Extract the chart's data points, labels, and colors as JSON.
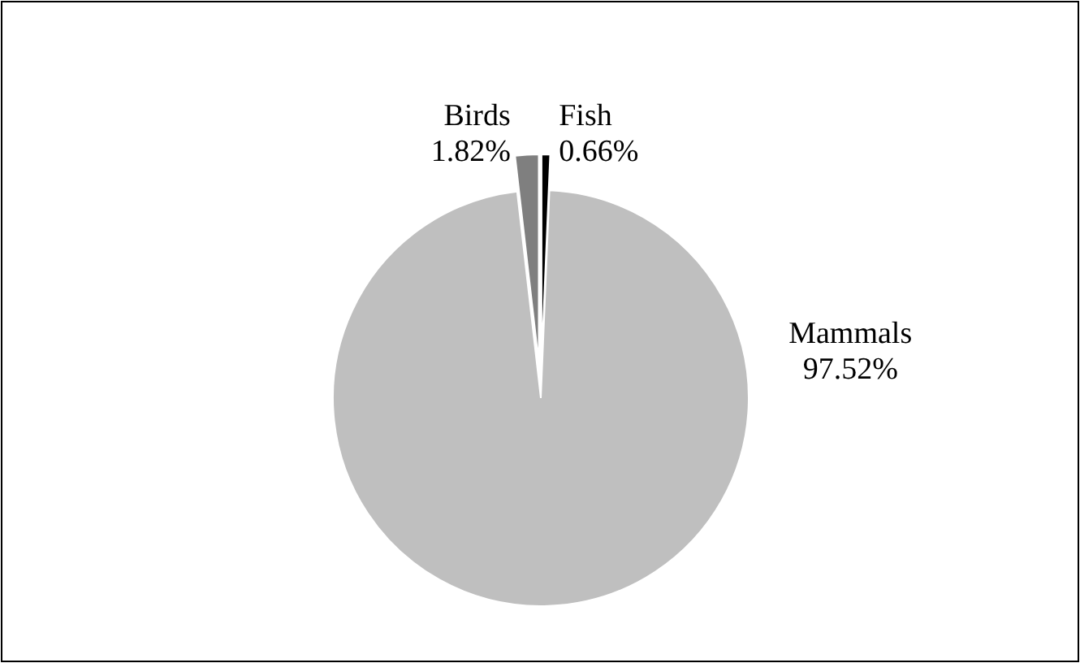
{
  "chart_data": {
    "type": "pie",
    "categories": [
      "Fish",
      "Mammals",
      "Birds"
    ],
    "values": [
      0.66,
      97.52,
      1.82
    ],
    "colors": [
      "#000000",
      "#bfbfbf",
      "#7f7f7f"
    ],
    "value_labels": [
      "0.66%",
      "97.52%",
      "1.82%"
    ]
  }
}
